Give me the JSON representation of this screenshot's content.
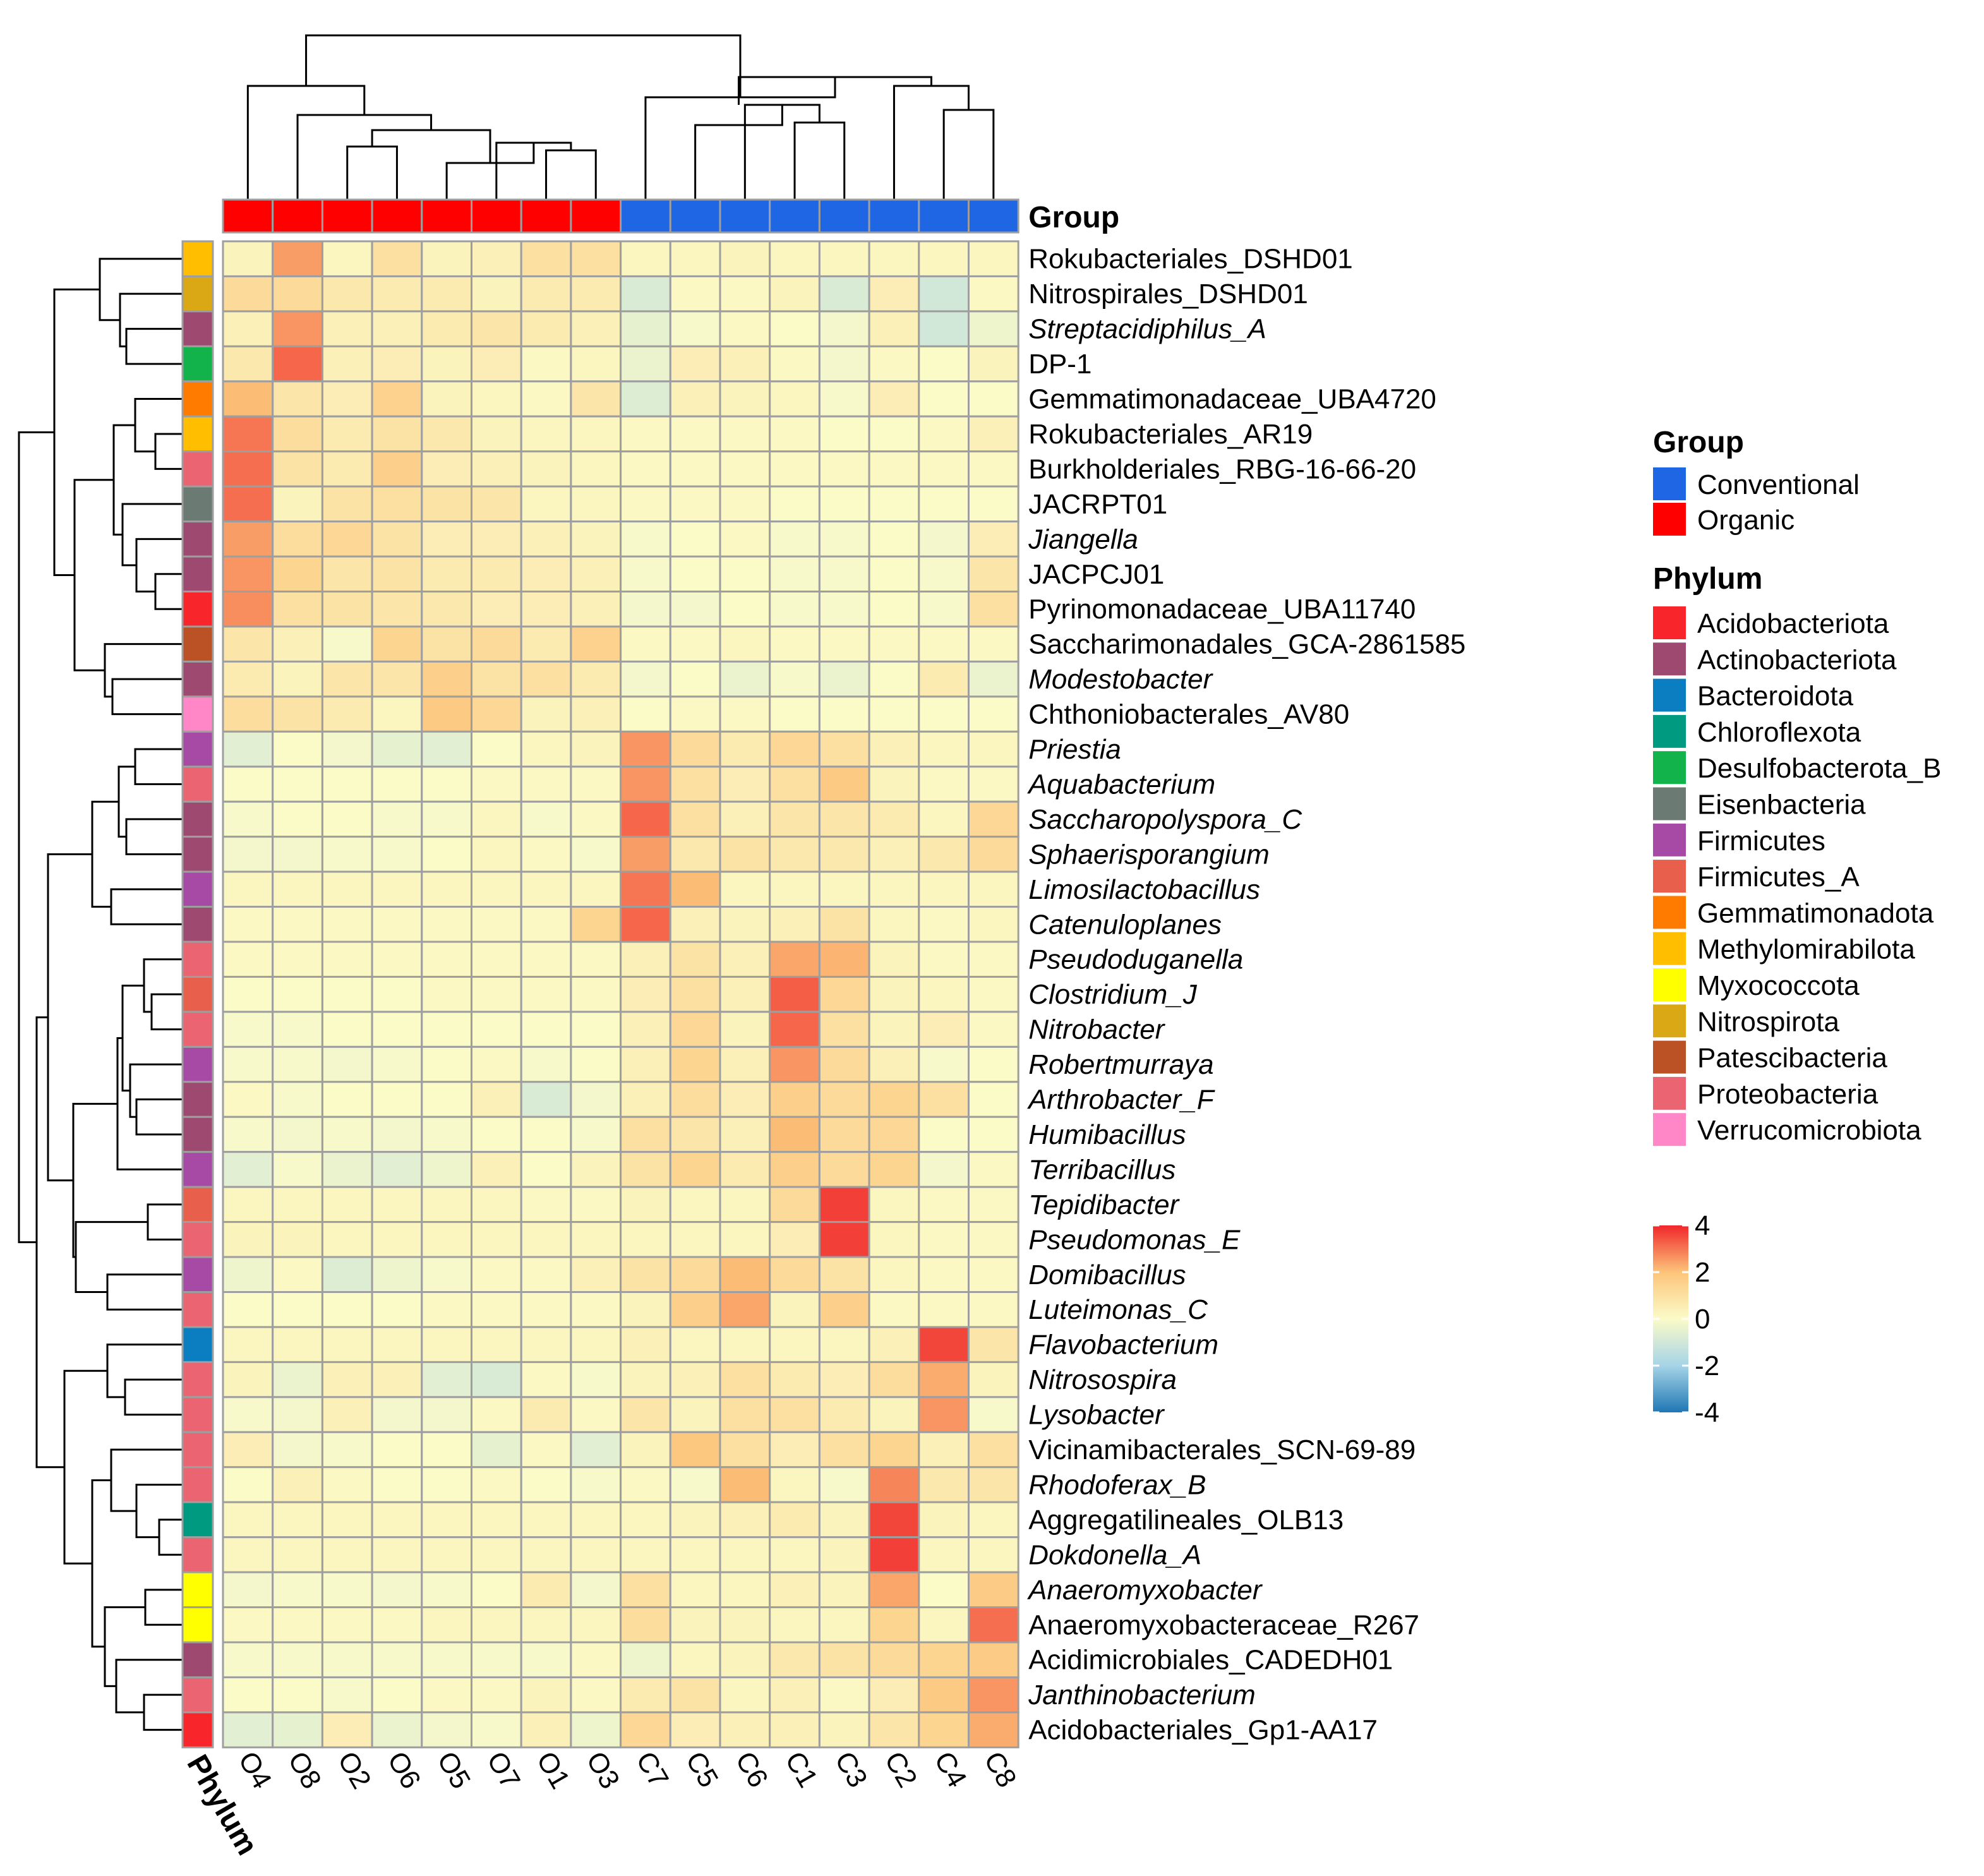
{
  "chart_data": {
    "type": "heatmap",
    "title": "",
    "columns": [
      "O4",
      "O8",
      "O2",
      "O6",
      "O5",
      "O7",
      "O1",
      "O3",
      "C7",
      "C5",
      "C6",
      "C1",
      "C3",
      "C2",
      "C4",
      "C8"
    ],
    "column_groups": [
      "Organic",
      "Organic",
      "Organic",
      "Organic",
      "Organic",
      "Organic",
      "Organic",
      "Organic",
      "Conventional",
      "Conventional",
      "Conventional",
      "Conventional",
      "Conventional",
      "Conventional",
      "Conventional",
      "Conventional"
    ],
    "group_annotation_label": "Group",
    "phylum_annotation_label": "Phylum",
    "rows": [
      {
        "label": "Rokubacteriales_DSHD01",
        "italic": false,
        "phylum": "Methylomirabilota"
      },
      {
        "label": "Nitrospirales_DSHD01",
        "italic": false,
        "phylum": "Nitrospirota"
      },
      {
        "label": "Streptacidiphilus_A",
        "italic": true,
        "phylum": "Actinobacteriota"
      },
      {
        "label": "DP-1",
        "italic": false,
        "phylum": "Desulfobacterota_B"
      },
      {
        "label": "Gemmatimonadaceae_UBA4720",
        "italic": false,
        "phylum": "Gemmatimonadota"
      },
      {
        "label": "Rokubacteriales_AR19",
        "italic": false,
        "phylum": "Methylomirabilota"
      },
      {
        "label": "Burkholderiales_RBG-16-66-20",
        "italic": false,
        "phylum": "Proteobacteria"
      },
      {
        "label": "JACRPT01",
        "italic": false,
        "phylum": "Eisenbacteria"
      },
      {
        "label": "Jiangella",
        "italic": true,
        "phylum": "Actinobacteriota"
      },
      {
        "label": "JACPCJ01",
        "italic": false,
        "phylum": "Actinobacteriota"
      },
      {
        "label": "Pyrinomonadaceae_UBA11740",
        "italic": false,
        "phylum": "Acidobacteriota"
      },
      {
        "label": "Saccharimonadales_GCA-2861585",
        "italic": false,
        "phylum": "Patescibacteria"
      },
      {
        "label": "Modestobacter",
        "italic": true,
        "phylum": "Actinobacteriota"
      },
      {
        "label": "Chthoniobacterales_AV80",
        "italic": false,
        "phylum": "Verrucomicrobiota"
      },
      {
        "label": "Priestia",
        "italic": true,
        "phylum": "Firmicutes"
      },
      {
        "label": "Aquabacterium",
        "italic": true,
        "phylum": "Proteobacteria"
      },
      {
        "label": "Saccharopolyspora_C",
        "italic": true,
        "phylum": "Actinobacteriota"
      },
      {
        "label": "Sphaerisporangium",
        "italic": true,
        "phylum": "Actinobacteriota"
      },
      {
        "label": "Limosilactobacillus",
        "italic": true,
        "phylum": "Firmicutes"
      },
      {
        "label": "Catenuloplanes",
        "italic": true,
        "phylum": "Actinobacteriota"
      },
      {
        "label": "Pseudoduganella",
        "italic": true,
        "phylum": "Proteobacteria"
      },
      {
        "label": "Clostridium_J",
        "italic": true,
        "phylum": "Firmicutes_A"
      },
      {
        "label": "Nitrobacter",
        "italic": true,
        "phylum": "Proteobacteria"
      },
      {
        "label": "Robertmurraya",
        "italic": true,
        "phylum": "Firmicutes"
      },
      {
        "label": "Arthrobacter_F",
        "italic": true,
        "phylum": "Actinobacteriota"
      },
      {
        "label": "Humibacillus",
        "italic": true,
        "phylum": "Actinobacteriota"
      },
      {
        "label": "Terribacillus",
        "italic": true,
        "phylum": "Firmicutes"
      },
      {
        "label": "Tepidibacter",
        "italic": true,
        "phylum": "Firmicutes_A"
      },
      {
        "label": "Pseudomonas_E",
        "italic": true,
        "phylum": "Proteobacteria"
      },
      {
        "label": "Domibacillus",
        "italic": true,
        "phylum": "Firmicutes"
      },
      {
        "label": "Luteimonas_C",
        "italic": true,
        "phylum": "Proteobacteria"
      },
      {
        "label": "Flavobacterium",
        "italic": true,
        "phylum": "Bacteroidota"
      },
      {
        "label": "Nitrosospira",
        "italic": true,
        "phylum": "Proteobacteria"
      },
      {
        "label": "Lysobacter",
        "italic": true,
        "phylum": "Proteobacteria"
      },
      {
        "label": "Vicinamibacterales_SCN-69-89",
        "italic": false,
        "phylum": "Proteobacteria"
      },
      {
        "label": "Rhodoferax_B",
        "italic": true,
        "phylum": "Proteobacteria"
      },
      {
        "label": "Aggregatilineales_OLB13",
        "italic": false,
        "phylum": "Chloroflexota"
      },
      {
        "label": "Dokdonella_A",
        "italic": true,
        "phylum": "Proteobacteria"
      },
      {
        "label": "Anaeromyxobacter",
        "italic": true,
        "phylum": "Myxococcota"
      },
      {
        "label": "Anaeromyxobacteraceae_R267",
        "italic": false,
        "phylum": "Myxococcota"
      },
      {
        "label": "Acidimicrobiales_CADEDH01",
        "italic": false,
        "phylum": "Actinobacteriota"
      },
      {
        "label": "Janthinobacterium",
        "italic": true,
        "phylum": "Proteobacteria"
      },
      {
        "label": "Acidobacteriales_Gp1-AA17",
        "italic": false,
        "phylum": "Acidobacteriota"
      }
    ],
    "values": [
      [
        0.3,
        2.5,
        0.2,
        1.0,
        0.3,
        0.4,
        1.0,
        1.0,
        0.2,
        0.2,
        0.3,
        0.2,
        0.2,
        0.2,
        0.2,
        0.2
      ],
      [
        1.2,
        1.2,
        0.7,
        0.6,
        0.6,
        0.3,
        0.6,
        0.6,
        -0.8,
        0.1,
        0.1,
        0.3,
        -0.8,
        0.5,
        -1.0,
        0.1
      ],
      [
        0.4,
        2.6,
        0.4,
        0.4,
        0.6,
        0.8,
        0.6,
        0.4,
        -0.5,
        -0.1,
        0.1,
        0.0,
        -0.2,
        0.4,
        -1.0,
        -0.3
      ],
      [
        0.7,
        3.2,
        0.4,
        0.5,
        0.3,
        0.5,
        0.1,
        0.2,
        -0.4,
        0.5,
        0.4,
        0.1,
        -0.2,
        0.1,
        0.0,
        0.3
      ],
      [
        2.1,
        0.8,
        0.5,
        1.5,
        0.3,
        0.2,
        0.1,
        0.8,
        -0.7,
        0.4,
        0.3,
        0.2,
        -0.1,
        0.5,
        0.0,
        0.0
      ],
      [
        3.0,
        1.1,
        0.6,
        0.9,
        0.7,
        0.3,
        0.2,
        0.2,
        0.1,
        0.1,
        0.1,
        0.1,
        0.0,
        0.0,
        0.1,
        0.4
      ],
      [
        3.1,
        0.9,
        0.6,
        1.6,
        0.5,
        0.4,
        0.3,
        0.2,
        0.1,
        0.1,
        0.1,
        0.1,
        0.1,
        0.1,
        0.1,
        0.1
      ],
      [
        3.1,
        0.3,
        0.9,
        1.0,
        0.9,
        0.8,
        0.2,
        0.2,
        0.1,
        0.1,
        0.1,
        0.0,
        0.0,
        0.0,
        0.0,
        0.0
      ],
      [
        2.5,
        1.1,
        1.3,
        0.9,
        0.5,
        0.5,
        0.4,
        0.3,
        -0.1,
        0.0,
        0.1,
        -0.1,
        -0.1,
        0.0,
        -0.2,
        0.5
      ],
      [
        2.6,
        1.4,
        0.8,
        0.9,
        0.6,
        0.6,
        0.5,
        0.4,
        -0.1,
        0.0,
        0.0,
        -0.1,
        -0.1,
        0.0,
        -0.1,
        0.8
      ],
      [
        2.7,
        1.0,
        0.9,
        0.8,
        0.7,
        0.5,
        0.5,
        0.4,
        -0.2,
        -0.2,
        0.0,
        -0.1,
        -0.1,
        0.0,
        -0.1,
        1.0
      ],
      [
        0.8,
        0.4,
        -0.1,
        1.4,
        0.9,
        1.2,
        0.6,
        1.5,
        0.1,
        0.1,
        0.2,
        0.1,
        0.1,
        0.1,
        0.1,
        0.1
      ],
      [
        0.6,
        0.3,
        0.8,
        0.8,
        1.6,
        0.9,
        1.0,
        0.6,
        -0.2,
        0.0,
        -0.4,
        -0.1,
        -0.4,
        0.0,
        0.6,
        -0.4
      ],
      [
        1.1,
        0.9,
        0.6,
        0.2,
        1.8,
        1.3,
        0.3,
        0.4,
        0.0,
        0.1,
        0.1,
        0.0,
        0.0,
        0.0,
        0.0,
        0.0
      ],
      [
        -0.6,
        0.0,
        -0.2,
        -0.5,
        -0.6,
        0.0,
        0.2,
        0.3,
        2.6,
        1.2,
        0.6,
        1.3,
        1.0,
        0.4,
        0.2,
        0.2
      ],
      [
        0.0,
        0.0,
        0.0,
        0.0,
        0.0,
        0.1,
        0.1,
        0.1,
        2.6,
        1.0,
        0.5,
        1.0,
        1.8,
        0.3,
        0.1,
        0.1
      ],
      [
        -0.1,
        0.0,
        0.0,
        -0.1,
        -0.1,
        0.2,
        -0.1,
        0.1,
        3.2,
        1.0,
        0.4,
        0.8,
        0.8,
        0.6,
        0.2,
        1.3
      ],
      [
        -0.2,
        -0.2,
        -0.1,
        -0.1,
        0.0,
        0.2,
        0.1,
        -0.1,
        2.5,
        0.7,
        0.9,
        0.7,
        0.7,
        0.4,
        0.7,
        1.2
      ],
      [
        0.2,
        0.2,
        0.2,
        0.2,
        0.2,
        0.2,
        0.2,
        0.2,
        3.0,
        2.1,
        0.2,
        0.2,
        0.2,
        0.2,
        0.2,
        0.2
      ],
      [
        0.1,
        0.1,
        0.1,
        0.1,
        0.1,
        0.1,
        0.1,
        1.4,
        3.2,
        0.4,
        0.3,
        0.4,
        0.9,
        0.2,
        0.1,
        0.2
      ],
      [
        0.1,
        0.1,
        0.1,
        0.1,
        0.1,
        0.1,
        0.1,
        0.1,
        0.4,
        0.9,
        0.4,
        2.4,
        2.2,
        0.3,
        0.1,
        0.1
      ],
      [
        0.0,
        0.0,
        0.0,
        0.0,
        0.1,
        0.1,
        0.1,
        0.1,
        0.5,
        1.0,
        0.4,
        3.3,
        1.3,
        0.3,
        0.2,
        0.1
      ],
      [
        -0.1,
        -0.1,
        0.0,
        0.0,
        0.0,
        0.0,
        0.0,
        0.0,
        0.4,
        1.3,
        0.3,
        3.2,
        1.0,
        0.3,
        0.5,
        0.1
      ],
      [
        -0.1,
        -0.1,
        -0.2,
        -0.1,
        0.0,
        0.1,
        -0.1,
        0.0,
        0.4,
        1.4,
        0.4,
        2.6,
        1.2,
        0.4,
        -0.1,
        0.0
      ],
      [
        0.1,
        -0.1,
        0.0,
        0.0,
        0.0,
        0.4,
        -0.8,
        -0.2,
        0.4,
        1.1,
        0.5,
        1.6,
        1.2,
        1.4,
        1.0,
        0.0
      ],
      [
        -0.1,
        -0.2,
        -0.1,
        -0.2,
        -0.1,
        0.0,
        0.0,
        -0.1,
        1.0,
        0.8,
        0.4,
        2.1,
        1.2,
        1.3,
        0.0,
        0.0
      ],
      [
        -0.6,
        -0.1,
        -0.4,
        -0.6,
        -0.3,
        0.4,
        0.0,
        0.3,
        0.9,
        1.4,
        0.6,
        1.6,
        1.2,
        1.4,
        -0.2,
        0.1
      ],
      [
        0.2,
        0.2,
        0.2,
        0.2,
        0.2,
        0.2,
        0.1,
        0.1,
        0.3,
        0.2,
        0.2,
        1.2,
        3.7,
        0.2,
        0.1,
        0.1
      ],
      [
        0.3,
        0.3,
        0.2,
        0.2,
        0.2,
        0.2,
        0.2,
        0.2,
        0.2,
        0.2,
        0.2,
        0.5,
        3.7,
        0.2,
        0.1,
        0.1
      ],
      [
        -0.3,
        0.1,
        -0.7,
        -0.3,
        -0.1,
        0.1,
        0.1,
        0.4,
        0.9,
        1.2,
        2.1,
        1.2,
        0.9,
        0.2,
        0.1,
        0.1
      ],
      [
        0.0,
        0.0,
        0.0,
        0.0,
        0.1,
        0.1,
        0.1,
        0.1,
        0.3,
        1.6,
        2.4,
        0.3,
        1.6,
        0.1,
        0.1,
        0.1
      ],
      [
        0.2,
        0.2,
        0.2,
        0.2,
        0.2,
        0.2,
        0.2,
        0.2,
        0.4,
        0.2,
        0.2,
        0.2,
        0.2,
        0.4,
        3.6,
        0.8
      ],
      [
        0.3,
        -0.4,
        0.4,
        0.4,
        -0.6,
        -0.8,
        0.1,
        -0.1,
        0.3,
        0.4,
        1.0,
        0.6,
        0.5,
        1.1,
        2.3,
        0.3
      ],
      [
        -0.1,
        -0.2,
        0.4,
        -0.2,
        -0.2,
        0.1,
        0.6,
        0.1,
        0.8,
        0.3,
        1.0,
        1.0,
        0.6,
        0.3,
        2.6,
        -0.1
      ],
      [
        0.5,
        -0.2,
        -0.1,
        0.0,
        0.0,
        -0.5,
        0.1,
        -0.6,
        0.3,
        1.9,
        1.0,
        0.5,
        1.0,
        1.4,
        0.4,
        1.0
      ],
      [
        0.0,
        0.4,
        0.1,
        0.0,
        0.0,
        0.1,
        0.0,
        -0.1,
        0.1,
        -0.1,
        2.1,
        0.2,
        -0.1,
        2.8,
        0.7,
        0.8
      ],
      [
        0.2,
        0.2,
        0.2,
        0.2,
        0.2,
        0.2,
        0.2,
        0.2,
        0.2,
        0.3,
        0.4,
        0.6,
        0.3,
        3.6,
        0.3,
        0.2
      ],
      [
        0.2,
        0.2,
        0.2,
        0.2,
        0.2,
        0.2,
        0.2,
        0.2,
        0.2,
        0.2,
        0.2,
        0.2,
        0.3,
        3.7,
        0.2,
        0.2
      ],
      [
        -0.2,
        -0.1,
        -0.1,
        -0.2,
        -0.1,
        0.0,
        0.6,
        -0.2,
        1.0,
        0.2,
        0.2,
        0.4,
        0.3,
        2.4,
        0.0,
        1.7
      ],
      [
        0.1,
        0.1,
        0.1,
        0.1,
        0.2,
        0.2,
        0.2,
        0.2,
        1.1,
        0.3,
        0.3,
        0.2,
        0.2,
        1.4,
        0.2,
        3.1
      ],
      [
        -0.1,
        -0.1,
        -0.1,
        -0.1,
        -0.1,
        -0.1,
        -0.1,
        0.1,
        -0.3,
        0.2,
        0.3,
        0.7,
        0.9,
        1.2,
        1.4,
        1.7
      ],
      [
        0.0,
        0.0,
        -0.1,
        0.0,
        0.1,
        0.1,
        0.3,
        0.1,
        0.6,
        0.9,
        0.2,
        0.4,
        0.1,
        0.5,
        1.8,
        2.6
      ],
      [
        -0.6,
        -0.5,
        0.5,
        -0.4,
        -0.2,
        -0.1,
        0.4,
        -0.3,
        1.3,
        0.5,
        0.4,
        0.4,
        0.3,
        0.8,
        1.4,
        2.3
      ]
    ],
    "color_scale": {
      "stops": [
        {
          "value": -4,
          "color": "#1f77b4"
        },
        {
          "value": -2,
          "color": "#a6d4e8"
        },
        {
          "value": 0,
          "color": "#fbfbc8"
        },
        {
          "value": 2,
          "color": "#fcc47a"
        },
        {
          "value": 4,
          "color": "#f0272b"
        }
      ],
      "ticks": [
        "4",
        "2",
        "0",
        "-2",
        "-4"
      ]
    },
    "legends": {
      "group": {
        "title": "Group",
        "items": [
          {
            "label": "Conventional",
            "color": "#1f66e5"
          },
          {
            "label": "Organic",
            "color": "#ff0000"
          }
        ]
      },
      "phylum": {
        "title": "Phylum",
        "items": [
          {
            "label": "Acidobacteriota",
            "color": "#f8262a"
          },
          {
            "label": "Actinobacteriota",
            "color": "#9e4970"
          },
          {
            "label": "Bacteroidota",
            "color": "#0b7dc1"
          },
          {
            "label": "Chloroflexota",
            "color": "#009a80"
          },
          {
            "label": "Desulfobacterota_B",
            "color": "#12b34a"
          },
          {
            "label": "Eisenbacteria",
            "color": "#6b7b74"
          },
          {
            "label": "Firmicutes",
            "color": "#a74aa6"
          },
          {
            "label": "Firmicutes_A",
            "color": "#e8604b"
          },
          {
            "label": "Gemmatimonadota",
            "color": "#ff7b00"
          },
          {
            "label": "Methylomirabilota",
            "color": "#ffbe00"
          },
          {
            "label": "Myxococcota",
            "color": "#ffff00"
          },
          {
            "label": "Nitrospirota",
            "color": "#dba815"
          },
          {
            "label": "Patescibacteria",
            "color": "#bb5225"
          },
          {
            "label": "Proteobacteria",
            "color": "#ea6472"
          },
          {
            "label": "Verrucomicrobiota",
            "color": "#ff87c7"
          }
        ]
      }
    }
  }
}
